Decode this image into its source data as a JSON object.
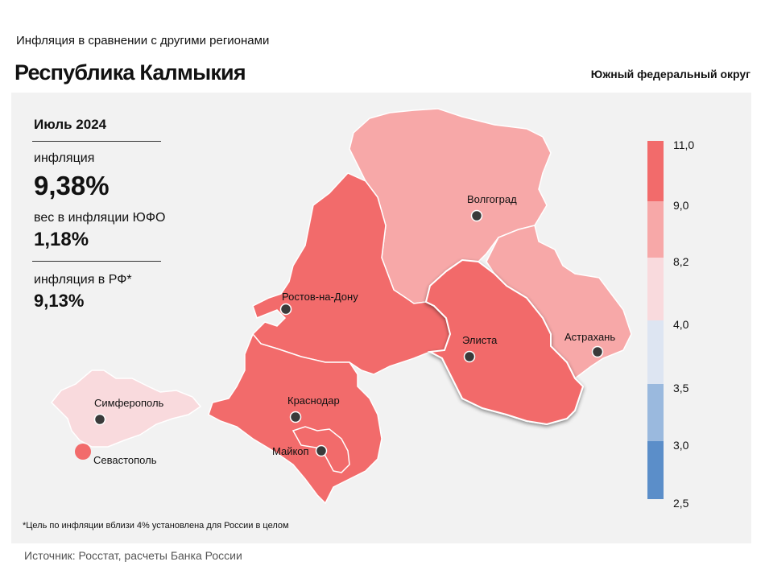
{
  "header": {
    "supertitle": "Инфляция  в сравнении  с другими  регионами",
    "title": "Республика Калмыкия",
    "district": "Южный федеральный округ"
  },
  "stats": {
    "period": "Июль 2024",
    "inflation_label": "инфляция",
    "inflation_value": "9,38%",
    "weight_label": "вес в инфляции  ЮФО",
    "weight_value": "1,18%",
    "rf_label": "инфляция  в РФ*",
    "rf_value": "9,13%"
  },
  "cities": {
    "volgograd": "Волгоград",
    "rostov": "Ростов-на-Дону",
    "elista": "Элиста",
    "astrakhan": "Астрахань",
    "krasnodar": "Краснодар",
    "maykop": "Майкоп",
    "simferopol": "Симферополь",
    "sevastopol": "Севастополь"
  },
  "legend": {
    "ticks": [
      "11,0",
      "9,0",
      "8,2",
      "4,0",
      "3,5",
      "3,0",
      "2,5"
    ],
    "colors": [
      "#f26b6b",
      "#f7a8a8",
      "#f9dadd",
      "#dde5f2",
      "#9ab9de",
      "#5b8ec9"
    ]
  },
  "map_values": {
    "note": "",
    "colors": {
      "high": "#f26b6b",
      "mid_high": "#f7a8a8",
      "low_pink": "#f9dadd"
    }
  },
  "footnote": "*Цель по инфляции вблизи 4% установлена для России в целом",
  "source": "Источник: Росстат, расчеты Банка России"
}
